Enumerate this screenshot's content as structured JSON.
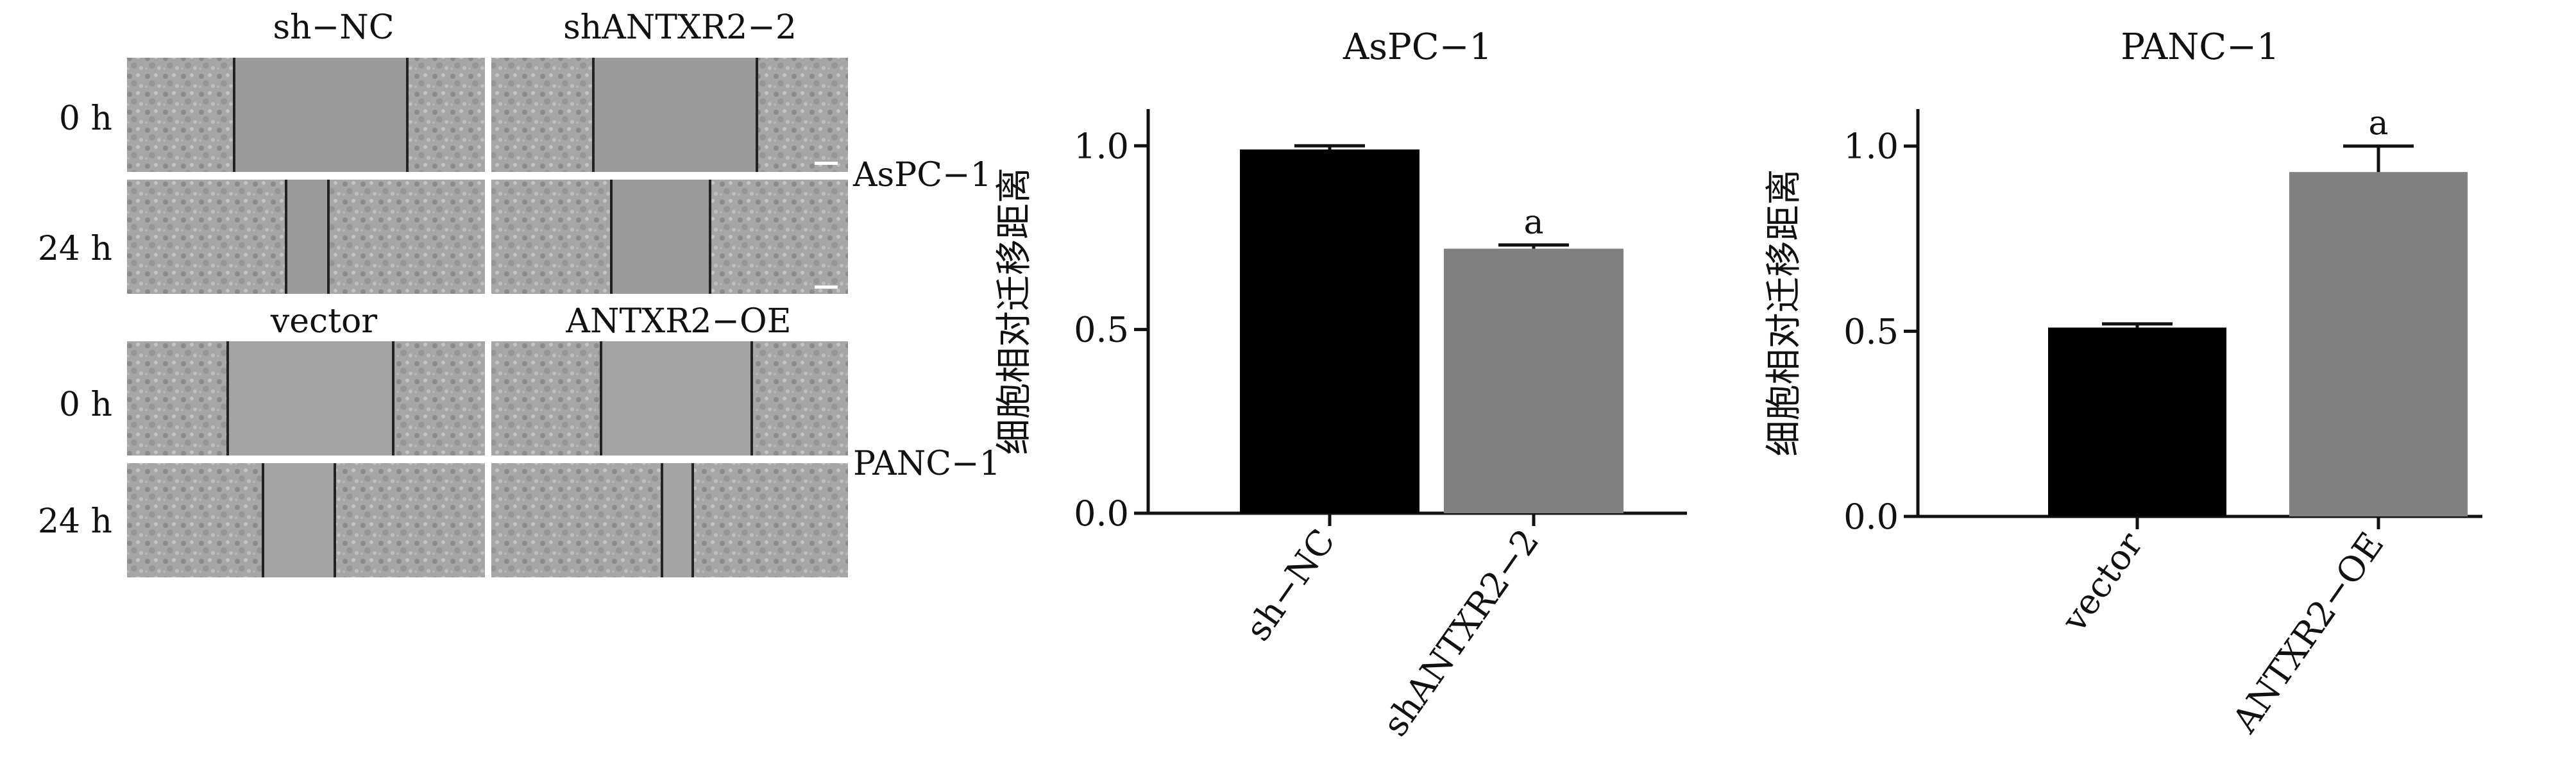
{
  "micrographs": {
    "asp_condition_1": "sh−NC",
    "asp_condition_2": "shANTXR2−2",
    "panc_condition_1": "vector",
    "panc_condition_2": "ANTXR2−OE",
    "time_0": "0 h",
    "time_24": "24 h",
    "cell_line_1": "AsPC−1",
    "cell_line_2": "PANC−1"
  },
  "chart_data": [
    {
      "type": "bar",
      "title": "AsPC−1",
      "ylabel": "细胞相对迁移距离",
      "xlabel": "",
      "categories": [
        "sh−NC",
        "shANTXR2−2"
      ],
      "values": [
        0.99,
        0.72
      ],
      "errors": [
        0.01,
        0.01
      ],
      "annotations": [
        "",
        "a"
      ],
      "ylim": [
        0,
        1.1
      ],
      "yticks": [
        "0.0",
        "0.5",
        "1.0"
      ],
      "bar_colors": [
        "#000000",
        "#808080"
      ],
      "grid": false
    },
    {
      "type": "bar",
      "title": "PANC−1",
      "ylabel": "细胞相对迁移距离",
      "xlabel": "",
      "categories": [
        "vector",
        "ANTXR2−OE"
      ],
      "values": [
        0.51,
        0.93
      ],
      "errors": [
        0.01,
        0.07
      ],
      "annotations": [
        "",
        "a"
      ],
      "ylim": [
        0,
        1.1
      ],
      "yticks": [
        "0.0",
        "0.5",
        "1.0"
      ],
      "bar_colors": [
        "#000000",
        "#808080"
      ],
      "grid": false
    }
  ]
}
